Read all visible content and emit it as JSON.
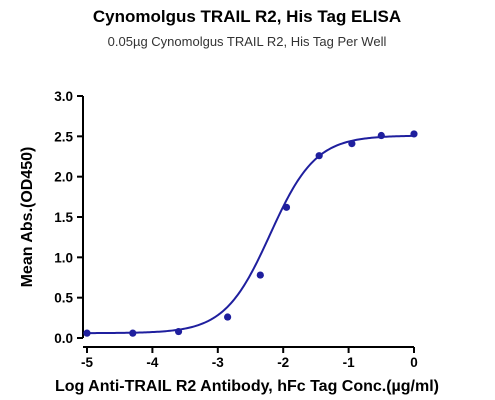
{
  "chart_data": {
    "type": "scatter",
    "title": "Cynomolgus TRAIL R2, His Tag ELISA",
    "subtitle": "0.05µg Cynomolgus TRAIL R2, His Tag Per Well",
    "xlabel": "Log Anti-TRAIL R2 Antibody, hFc Tag Conc.(µg/ml)",
    "ylabel": "Mean Abs.(OD450)",
    "xlim": [
      -5,
      0
    ],
    "ylim": [
      0,
      3.0
    ],
    "xticks": [
      "-5",
      "-4",
      "-3",
      "-2",
      "-1",
      "0"
    ],
    "yticks": [
      "0.0",
      "0.5",
      "1.0",
      "1.5",
      "2.0",
      "2.5",
      "3.0"
    ],
    "grid": false,
    "series": [
      {
        "color": "#1f1f9e",
        "x": [
          -5.0,
          -4.3,
          -3.6,
          -2.85,
          -2.35,
          -1.95,
          -1.45,
          -0.95,
          -0.5,
          0.0
        ],
        "y": [
          0.06,
          0.06,
          0.08,
          0.26,
          0.78,
          1.62,
          2.26,
          2.41,
          2.51,
          2.53
        ]
      }
    ],
    "fit": {
      "bottom": 0.06,
      "top": 2.51,
      "log_ec50": -2.2,
      "hill": 1.25
    }
  }
}
